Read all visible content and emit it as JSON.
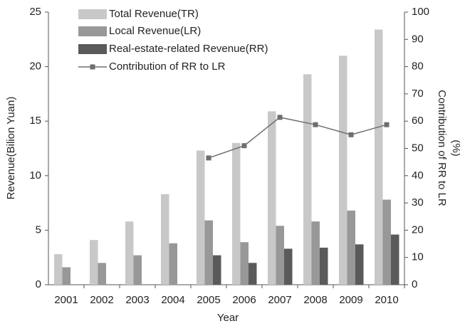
{
  "chart_data": {
    "type": "bar",
    "categories": [
      "2001",
      "2002",
      "2003",
      "2004",
      "2005",
      "2006",
      "2007",
      "2008",
      "2009",
      "2010"
    ],
    "xlabel": "Year",
    "ylabel": "Revenue(Bilion Yuan)",
    "y2label": [
      "Contribution of RR to LR",
      "(%)"
    ],
    "ylim": [
      0,
      25
    ],
    "yticks": [
      0,
      5,
      10,
      15,
      20,
      25
    ],
    "y2lim": [
      0,
      100
    ],
    "y2ticks": [
      0,
      10,
      20,
      30,
      40,
      50,
      60,
      70,
      80,
      90,
      100
    ],
    "series": [
      {
        "name": "Total Revenue(TR)",
        "color": "#c8c8c8",
        "values": [
          2.8,
          4.1,
          5.8,
          8.3,
          12.3,
          13.0,
          15.9,
          19.3,
          21.0,
          23.4
        ]
      },
      {
        "name": "Local Revenue(LR)",
        "color": "#989898",
        "values": [
          1.6,
          2.0,
          2.7,
          3.8,
          5.9,
          3.9,
          5.4,
          5.8,
          6.8,
          7.8
        ]
      },
      {
        "name": "Real-estate-related Revenue(RR)",
        "color": "#5a5a5a",
        "values": [
          null,
          null,
          null,
          null,
          2.7,
          2.0,
          3.3,
          3.4,
          3.7,
          4.6
        ]
      },
      {
        "name": "Contribution of RR to LR",
        "color": "#6e6e6e",
        "type": "line",
        "axis": "y2",
        "values": [
          null,
          null,
          null,
          null,
          46.5,
          51,
          61.4,
          58.7,
          55,
          58.7
        ]
      }
    ]
  }
}
